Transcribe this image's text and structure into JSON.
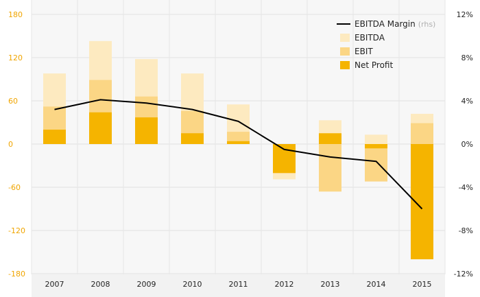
{
  "chart_data": {
    "type": "bar",
    "categories": [
      "2007",
      "2008",
      "2009",
      "2010",
      "2011",
      "2012",
      "2013",
      "2014",
      "2015"
    ],
    "series": [
      {
        "name": "EBITDA",
        "kind": "bar",
        "color": "#fdeac0",
        "values": [
          98,
          143,
          118,
          98,
          55,
          -49,
          33,
          13,
          42
        ]
      },
      {
        "name": "EBIT",
        "kind": "bar",
        "color": "#fbd685",
        "values": [
          52,
          89,
          66,
          46,
          17,
          -41,
          -66,
          -52,
          29
        ]
      },
      {
        "name": "Net Profit",
        "kind": "bar",
        "color": "#f5b400",
        "values": [
          20,
          44,
          37,
          15,
          4,
          -40,
          15,
          -6,
          -160
        ]
      },
      {
        "name": "EBITDA Margin",
        "kind": "line",
        "axis": "right",
        "color": "#000000",
        "values": [
          3.2,
          4.1,
          3.8,
          3.2,
          2.1,
          -0.5,
          -1.2,
          -1.6,
          -6.0
        ]
      }
    ],
    "ylim_left": [
      -180,
      180
    ],
    "yticks_left": [
      "180",
      "120",
      "60",
      "0",
      "-60",
      "-120",
      "-180"
    ],
    "ylim_right": [
      -12,
      12
    ],
    "yticks_right": [
      "12%",
      "8%",
      "4%",
      "0%",
      "-4%",
      "-8%",
      "-12%"
    ],
    "grid": true,
    "legend_position": "top-right",
    "legend": {
      "items": [
        "EBITDA Margin",
        "EBITDA",
        "EBIT",
        "Net Profit"
      ],
      "line_note": "(rhs)"
    }
  }
}
